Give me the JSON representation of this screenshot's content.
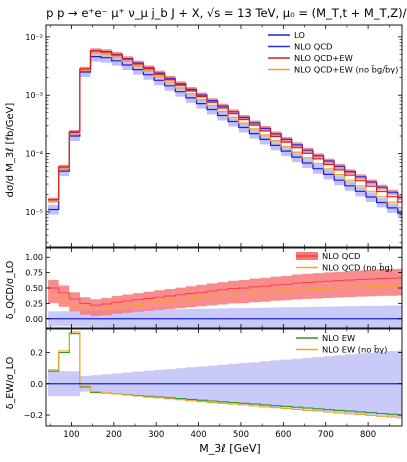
{
  "title": "p p → e⁺e⁻ μ⁺ ν_μ j_b J + X,  √s = 13 TeV,  μ₀ = (M_T,t + M_T,Z)/6",
  "chart_data": [
    {
      "type": "line",
      "panel": "main",
      "ylabel": "dσ/d M_3ℓ [fb/GeV]",
      "yscale": "log",
      "ylim": [
        2.5e-06,
        0.016
      ],
      "y_ticks": [
        {
          "v": 1e-05,
          "label": "10⁻⁵"
        },
        {
          "v": 0.0001,
          "label": "10⁻⁴"
        },
        {
          "v": 0.001,
          "label": "10⁻³"
        },
        {
          "v": 0.01,
          "label": "10⁻²"
        }
      ],
      "legend_position": "top-right",
      "series": [
        {
          "name": "LO",
          "color": "#1f1fd6",
          "band": "#8c8cf0",
          "values": [
            1.1e-05,
            5e-05,
            0.0002,
            0.0025,
            0.0046,
            0.0044,
            0.0039,
            0.0033,
            0.00275,
            0.00225,
            0.0018,
            0.00145,
            0.00115,
            0.0009,
            0.00072,
            0.00057,
            0.00045,
            0.000355,
            0.00028,
            0.00022,
            0.000175,
            0.000138,
            0.00011,
            8.7e-05,
            6.9e-05,
            5.5e-05,
            4.4e-05,
            3.5e-05,
            2.8e-05,
            2.25e-05,
            1.8e-05,
            1.45e-05,
            1.17e-05,
            9.5e-06,
            7.8e-06
          ]
        },
        {
          "name": "NLO QCD",
          "color": "#2b2bd8",
          "band": "#f87878",
          "values": [
            1.6e-05,
            5.8e-05,
            0.00023,
            0.0028,
            0.0058,
            0.0056,
            0.005,
            0.00425,
            0.00355,
            0.00295,
            0.0024,
            0.00195,
            0.00157,
            0.00126,
            0.00101,
            0.00081,
            0.00065,
            0.00052,
            0.000417,
            0.000335,
            0.00027,
            0.000217,
            0.000175,
            0.000141,
            0.000114,
            9.2e-05,
            7.45e-05,
            6.05e-05,
            4.9e-05,
            4e-05,
            3.25e-05,
            2.65e-05,
            2.17e-05,
            1.78e-05,
            1.46e-05
          ]
        },
        {
          "name": "NLO QCD+EW",
          "color": "#d42020",
          "values": [
            1.62e-05,
            5.9e-05,
            0.000235,
            0.00282,
            0.00575,
            0.0055,
            0.0049,
            0.00415,
            0.00345,
            0.00285,
            0.0023,
            0.00186,
            0.00149,
            0.00119,
            0.00095,
            0.00076,
            0.000605,
            0.000482,
            0.000384,
            0.000307,
            0.000245,
            0.000196,
            0.000157,
            0.000126,
            0.000101,
            8.1e-05,
            6.5e-05,
            5.25e-05,
            4.25e-05,
            3.42e-05,
            2.77e-05,
            2.24e-05,
            1.82e-05,
            1.48e-05,
            1.2e-05
          ]
        },
        {
          "name": "NLO QCD+EW (no b̄g/b̄γ)",
          "color": "#f5a623",
          "values": [
            1.55e-05,
            5.6e-05,
            0.00022,
            0.0027,
            0.0053,
            0.00505,
            0.0045,
            0.0038,
            0.00315,
            0.00258,
            0.00208,
            0.00167,
            0.00133,
            0.00106,
            0.00084,
            0.00067,
            0.00053,
            0.00042,
            0.000334,
            0.000265,
            0.00021,
            0.000167,
            0.000133,
            0.000106,
            8.5e-05,
            6.8e-05,
            5.45e-05,
            4.35e-05,
            3.5e-05,
            2.8e-05,
            2.25e-05,
            1.82e-05,
            1.47e-05,
            1.19e-05,
            9.6e-06
          ]
        }
      ]
    },
    {
      "type": "line",
      "panel": "qcd-ratio",
      "ylabel": "δ_QCD/σ_LO",
      "ylim": [
        -0.15,
        1.15
      ],
      "y_ticks": [
        {
          "v": 0.0,
          "label": "0.00"
        },
        {
          "v": 0.25,
          "label": "0.25"
        },
        {
          "v": 0.5,
          "label": "0.50"
        },
        {
          "v": 0.75,
          "label": "0.75"
        },
        {
          "v": 1.0,
          "label": "1.00"
        }
      ],
      "legend_position": "top-right",
      "series": [
        {
          "name": "NLO QCD",
          "color": "#ff3b3b",
          "band": "#f87878",
          "values": [
            0.5,
            0.42,
            0.32,
            0.25,
            0.22,
            0.24,
            0.27,
            0.29,
            0.31,
            0.33,
            0.35,
            0.37,
            0.39,
            0.41,
            0.43,
            0.45,
            0.47,
            0.49,
            0.5,
            0.52,
            0.53,
            0.55,
            0.56,
            0.58,
            0.59,
            0.6,
            0.61,
            0.62,
            0.63,
            0.64,
            0.645,
            0.655,
            0.66,
            0.665,
            0.67
          ]
        },
        {
          "name": "NLO QCD (no b̄g)",
          "color": "#f5a623",
          "values": [
            0.38,
            0.32,
            0.24,
            0.18,
            0.15,
            0.16,
            0.19,
            0.21,
            0.23,
            0.25,
            0.27,
            0.29,
            0.31,
            0.33,
            0.35,
            0.37,
            0.38,
            0.4,
            0.41,
            0.43,
            0.44,
            0.45,
            0.46,
            0.47,
            0.48,
            0.49,
            0.5,
            0.505,
            0.51,
            0.515,
            0.52,
            0.525,
            0.53,
            0.535,
            0.54
          ]
        },
        {
          "name": "LO scale band",
          "color": "#2b2bd8",
          "band": "#b3b3f5",
          "values": [
            0.0
          ]
        }
      ]
    },
    {
      "type": "line",
      "panel": "ew-ratio",
      "xlabel": "M_3ℓ [GeV]",
      "ylabel": "δ_EW/σ_LO",
      "xlim": [
        40,
        880
      ],
      "ylim": [
        -0.27,
        0.35
      ],
      "x_ticks": [
        100,
        200,
        300,
        400,
        500,
        600,
        700,
        800
      ],
      "y_ticks": [
        {
          "v": -0.2,
          "label": "−0.2"
        },
        {
          "v": 0.0,
          "label": "0.0"
        },
        {
          "v": 0.2,
          "label": "0.2"
        }
      ],
      "legend_position": "top-right",
      "series": [
        {
          "name": "NLO EW",
          "color": "#2a9a2a",
          "values": [
            0.08,
            0.2,
            0.32,
            -0.02,
            -0.055,
            -0.06,
            -0.065,
            -0.07,
            -0.075,
            -0.08,
            -0.085,
            -0.09,
            -0.095,
            -0.1,
            -0.105,
            -0.11,
            -0.115,
            -0.12,
            -0.125,
            -0.13,
            -0.135,
            -0.14,
            -0.145,
            -0.15,
            -0.155,
            -0.16,
            -0.165,
            -0.17,
            -0.175,
            -0.18,
            -0.185,
            -0.19,
            -0.195,
            -0.2,
            -0.205
          ]
        },
        {
          "name": "NLO EW (no b̄γ)",
          "color": "#f5a623",
          "values": [
            0.09,
            0.21,
            0.33,
            -0.015,
            -0.05,
            -0.058,
            -0.065,
            -0.072,
            -0.078,
            -0.085,
            -0.09,
            -0.096,
            -0.102,
            -0.108,
            -0.114,
            -0.12,
            -0.125,
            -0.13,
            -0.136,
            -0.142,
            -0.148,
            -0.153,
            -0.158,
            -0.164,
            -0.17,
            -0.175,
            -0.18,
            -0.186,
            -0.192,
            -0.197,
            -0.202,
            -0.208,
            -0.213,
            -0.218,
            -0.224
          ]
        },
        {
          "name": "LO scale band",
          "color": "#2b2bd8",
          "band": "#b3b3f5",
          "values": [
            0.0
          ]
        }
      ]
    }
  ]
}
